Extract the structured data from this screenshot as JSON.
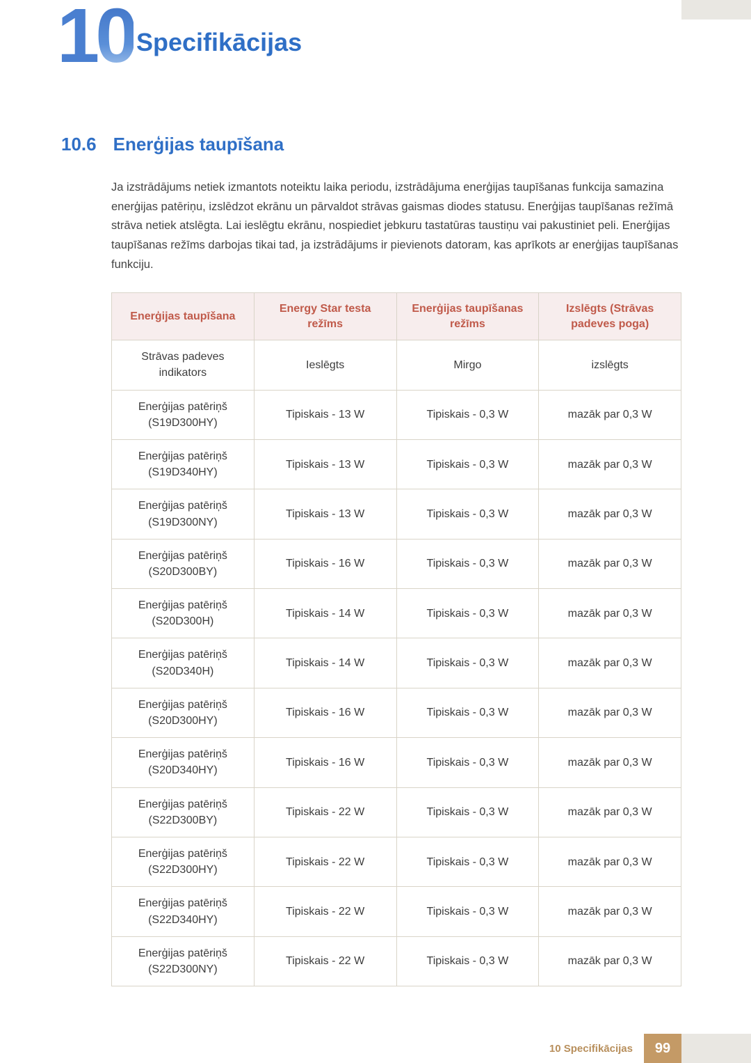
{
  "colors": {
    "accent_blue": "#2f6fc6",
    "badge_gradient_top": "#3c6fc4",
    "badge_gradient_bottom": "#bcd4f2",
    "table_border": "#d9d4c8",
    "table_header_bg": "#f7eded",
    "table_header_text": "#c05a4a",
    "body_text": "#444444",
    "footer_text": "#b88f5c",
    "footer_page_bg": "#c49a66",
    "gray_bar": "#e9e7e2"
  },
  "chapter": {
    "number": "10",
    "title": "Specifikācijas"
  },
  "section": {
    "number": "10.6",
    "title": "Enerģijas taupīšana"
  },
  "body": "Ja izstrādājums netiek izmantots noteiktu laika periodu, izstrādājuma enerģijas taupīšanas funkcija samazina enerģijas patēriņu, izslēdzot ekrānu un pārvaldot strāvas gaismas diodes statusu. Enerģijas taupīšanas režīmā strāva netiek atslēgta. Lai ieslēgtu ekrānu, nospiediet jebkuru tastatūras taustiņu vai pakustiniet peli. Enerģijas taupīšanas režīms darbojas tikai tad, ja izstrādājums ir pievienots datoram, kas aprīkots ar enerģijas taupīšanas funkciju.",
  "table": {
    "headers": [
      "Enerģijas taupīšana",
      "Energy Star testa režīms",
      "Enerģijas taupīšanas režīms",
      "Izslēgts (Strāvas padeves poga)"
    ],
    "rows": [
      {
        "label": "Strāvas padeves indikators",
        "c1": "Ieslēgts",
        "c2": "Mirgo",
        "c3": "izslēgts"
      },
      {
        "label": "Enerģijas patēriņš (S19D300HY)",
        "c1": "Tipiskais - 13 W",
        "c2": "Tipiskais - 0,3 W",
        "c3": "mazāk par 0,3 W"
      },
      {
        "label": "Enerģijas patēriņš (S19D340HY)",
        "c1": "Tipiskais - 13 W",
        "c2": "Tipiskais - 0,3 W",
        "c3": "mazāk par 0,3 W"
      },
      {
        "label": "Enerģijas patēriņš (S19D300NY)",
        "c1": "Tipiskais - 13 W",
        "c2": "Tipiskais - 0,3 W",
        "c3": "mazāk par 0,3 W"
      },
      {
        "label": "Enerģijas patēriņš (S20D300BY)",
        "c1": "Tipiskais - 16 W",
        "c2": "Tipiskais - 0,3 W",
        "c3": "mazāk par 0,3 W"
      },
      {
        "label": "Enerģijas patēriņš (S20D300H)",
        "c1": "Tipiskais - 14 W",
        "c2": "Tipiskais - 0,3 W",
        "c3": "mazāk par 0,3 W"
      },
      {
        "label": "Enerģijas patēriņš (S20D340H)",
        "c1": "Tipiskais - 14 W",
        "c2": "Tipiskais - 0,3 W",
        "c3": "mazāk par 0,3 W"
      },
      {
        "label": "Enerģijas patēriņš (S20D300HY)",
        "c1": "Tipiskais - 16 W",
        "c2": "Tipiskais - 0,3 W",
        "c3": "mazāk par 0,3 W"
      },
      {
        "label": "Enerģijas patēriņš (S20D340HY)",
        "c1": "Tipiskais - 16 W",
        "c2": "Tipiskais - 0,3 W",
        "c3": "mazāk par 0,3 W"
      },
      {
        "label": "Enerģijas patēriņš (S22D300BY)",
        "c1": "Tipiskais - 22 W",
        "c2": "Tipiskais - 0,3 W",
        "c3": "mazāk par 0,3 W"
      },
      {
        "label": "Enerģijas patēriņš (S22D300HY)",
        "c1": "Tipiskais - 22 W",
        "c2": "Tipiskais - 0,3 W",
        "c3": "mazāk par 0,3 W"
      },
      {
        "label": "Enerģijas patēriņš (S22D340HY)",
        "c1": "Tipiskais - 22 W",
        "c2": "Tipiskais - 0,3 W",
        "c3": "mazāk par 0,3 W"
      },
      {
        "label": "Enerģijas patēriņš (S22D300NY)",
        "c1": "Tipiskais - 22 W",
        "c2": "Tipiskais - 0,3 W",
        "c3": "mazāk par 0,3 W"
      }
    ]
  },
  "footer": {
    "label": "10 Specifikācijas",
    "page": "99"
  }
}
